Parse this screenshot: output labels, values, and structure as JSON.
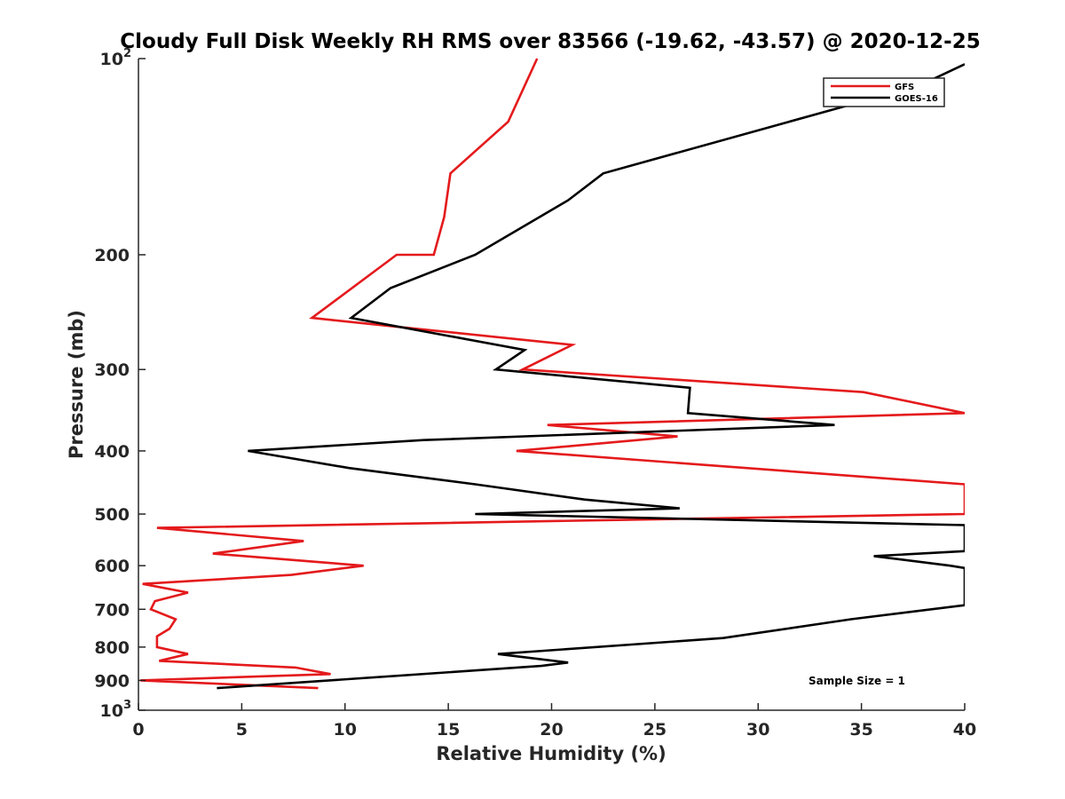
{
  "chart_data": {
    "type": "line",
    "title": "Cloudy Full Disk Weekly RH RMS over 83566 (-19.62, -43.57) @ 2020-12-25",
    "xlabel": "Relative Humidity (%)",
    "ylabel": "Pressure (mb)",
    "xlim": [
      0,
      40
    ],
    "ylim": [
      100,
      1000
    ],
    "yscale": "log",
    "y_reversed": true,
    "x_ticks": [
      "0",
      "5",
      "10",
      "15",
      "20",
      "25",
      "30",
      "35",
      "40"
    ],
    "y_ticks": [
      {
        "value": 100,
        "base": "10",
        "sup": "2"
      },
      {
        "value": 200,
        "label": "200"
      },
      {
        "value": 300,
        "label": "300"
      },
      {
        "value": 400,
        "label": "400"
      },
      {
        "value": 500,
        "label": "500"
      },
      {
        "value": 600,
        "label": "600"
      },
      {
        "value": 700,
        "label": "700"
      },
      {
        "value": 800,
        "label": "800"
      },
      {
        "value": 900,
        "label": "900"
      },
      {
        "value": 1000,
        "base": "10",
        "sup": "3"
      }
    ],
    "grid": false,
    "legend_position": "top-right",
    "annotation": "Sample Size = 1",
    "series": [
      {
        "name": "GFS",
        "color": "#e41a1c",
        "points": [
          {
            "x": 19.3,
            "y": 100
          },
          {
            "x": 17.9,
            "y": 125
          },
          {
            "x": 15.1,
            "y": 150
          },
          {
            "x": 14.8,
            "y": 175
          },
          {
            "x": 14.3,
            "y": 200
          },
          {
            "x": 12.5,
            "y": 200
          },
          {
            "x": 8.4,
            "y": 250
          },
          {
            "x": 21.0,
            "y": 275
          },
          {
            "x": 18.6,
            "y": 300
          },
          {
            "x": 35.1,
            "y": 325
          },
          {
            "x": 40.0,
            "y": 350
          },
          {
            "x": 19.8,
            "y": 365
          },
          {
            "x": 26.1,
            "y": 380
          },
          {
            "x": 18.3,
            "y": 400
          },
          {
            "x": 40.0,
            "y": 450
          },
          {
            "x": 40.0,
            "y": 500
          },
          {
            "x": 0.9,
            "y": 525
          },
          {
            "x": 8.0,
            "y": 550
          },
          {
            "x": 3.6,
            "y": 575
          },
          {
            "x": 10.9,
            "y": 600
          },
          {
            "x": 7.4,
            "y": 620
          },
          {
            "x": 0.2,
            "y": 640
          },
          {
            "x": 2.4,
            "y": 660
          },
          {
            "x": 0.8,
            "y": 680
          },
          {
            "x": 0.6,
            "y": 700
          },
          {
            "x": 1.8,
            "y": 725
          },
          {
            "x": 1.5,
            "y": 750
          },
          {
            "x": 0.9,
            "y": 770
          },
          {
            "x": 0.9,
            "y": 800
          },
          {
            "x": 2.4,
            "y": 820
          },
          {
            "x": 1.0,
            "y": 840
          },
          {
            "x": 7.6,
            "y": 860
          },
          {
            "x": 9.3,
            "y": 880
          },
          {
            "x": 0.1,
            "y": 900
          },
          {
            "x": 8.7,
            "y": 925
          }
        ]
      },
      {
        "name": "GOES-16",
        "color": "#000000",
        "points": [
          {
            "x": 40.0,
            "y": 102
          },
          {
            "x": 37.8,
            "y": 110
          },
          {
            "x": 31.5,
            "y": 125
          },
          {
            "x": 22.5,
            "y": 150
          },
          {
            "x": 20.8,
            "y": 165
          },
          {
            "x": 16.3,
            "y": 200
          },
          {
            "x": 12.2,
            "y": 225
          },
          {
            "x": 10.3,
            "y": 250
          },
          {
            "x": 18.7,
            "y": 280
          },
          {
            "x": 17.3,
            "y": 300
          },
          {
            "x": 26.7,
            "y": 320
          },
          {
            "x": 26.6,
            "y": 350
          },
          {
            "x": 33.7,
            "y": 365
          },
          {
            "x": 13.8,
            "y": 385
          },
          {
            "x": 5.3,
            "y": 400
          },
          {
            "x": 10.2,
            "y": 425
          },
          {
            "x": 16.3,
            "y": 450
          },
          {
            "x": 21.6,
            "y": 475
          },
          {
            "x": 26.2,
            "y": 490
          },
          {
            "x": 16.3,
            "y": 500
          },
          {
            "x": 40.0,
            "y": 520
          },
          {
            "x": 40.0,
            "y": 570
          },
          {
            "x": 35.6,
            "y": 580
          },
          {
            "x": 39.3,
            "y": 600
          },
          {
            "x": 40.0,
            "y": 605
          },
          {
            "x": 40.0,
            "y": 690
          },
          {
            "x": 34.5,
            "y": 725
          },
          {
            "x": 28.3,
            "y": 775
          },
          {
            "x": 17.4,
            "y": 820
          },
          {
            "x": 20.8,
            "y": 845
          },
          {
            "x": 19.5,
            "y": 855
          },
          {
            "x": 3.8,
            "y": 925
          }
        ]
      }
    ]
  }
}
